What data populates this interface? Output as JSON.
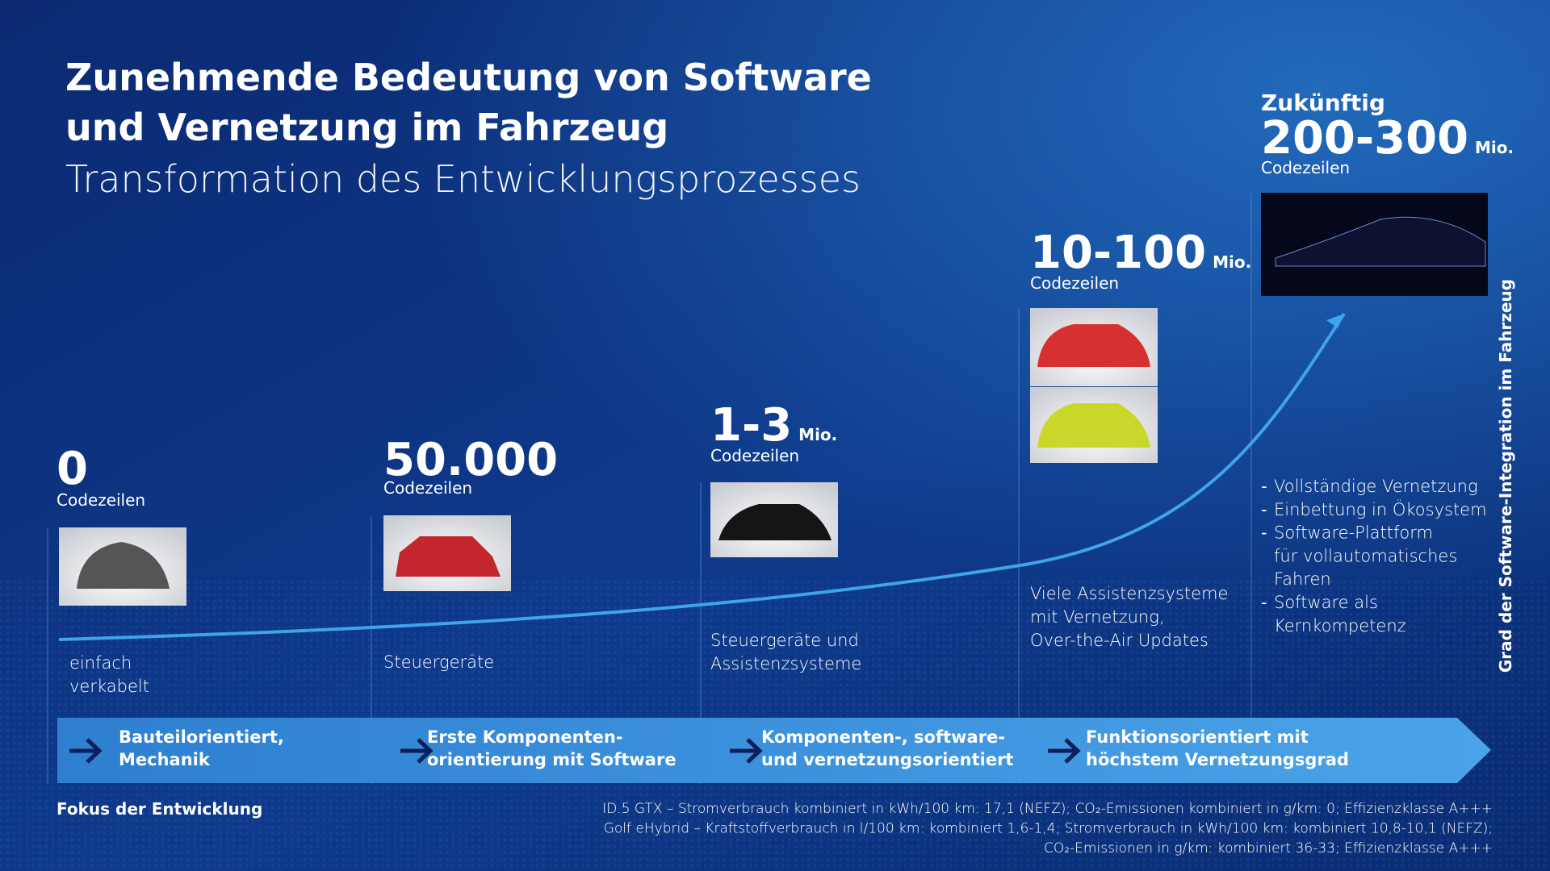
{
  "header": {
    "title": [
      "Zunehmende Bedeutung von Software",
      "und Vernetzung im Fahrzeug"
    ],
    "subtitle": "Transformation des Entwicklungsprozesses"
  },
  "stages": [
    {
      "value": "0",
      "caption": "Codezeilen",
      "description": [
        "einfach",
        "verkabelt"
      ]
    },
    {
      "value": "50.000",
      "caption": "Codezeilen",
      "description": [
        "Steuergeräte"
      ]
    },
    {
      "value": "1-3",
      "unit": "Mio.",
      "caption": "Codezeilen",
      "description": [
        "Steuergeräte und",
        "Assistenzsysteme"
      ]
    },
    {
      "value": "10-100",
      "unit": "Mio.",
      "caption": "Codezeilen",
      "description": [
        "Viele Assistenzsysteme",
        "mit Vernetzung,",
        "Over-the-Air Updates"
      ]
    },
    {
      "overline": "Zukünftig",
      "value": "200-300",
      "unit": "Mio.",
      "caption": "Codezeilen",
      "bullets": [
        [
          "Vollständige Vernetzung"
        ],
        [
          "Einbettung in Ökosystem"
        ],
        [
          "Software-Plattform",
          "für vollautomatisches",
          "Fahren"
        ],
        [
          "Software als",
          "Kernkompetenz"
        ]
      ]
    }
  ],
  "focus": {
    "label": "Fokus der Entwicklung",
    "items": [
      [
        "Bauteilorientiert,",
        "Mechanik"
      ],
      [
        "Erste Komponenten-",
        "orientierung mit Software"
      ],
      [
        "Komponenten-, software-",
        "und vernetzungsorientiert"
      ],
      [
        "Funktionsorientiert mit",
        "höchstem Vernetzungsgrad"
      ]
    ]
  },
  "axis_label": "Grad der Software-Integration im Fahrzeug",
  "footnote": [
    "ID.5 GTX – Stromverbrauch kombiniert in kWh/100 km: 17,1 (NEFZ); CO₂-Emissionen kombiniert in g/km: 0; Effizienzklasse A+++",
    "Golf eHybrid – Kraftstoffverbrauch in l/100 km: kombiniert 1,6-1,4; Stromverbrauch in kWh/100 km: kombiniert 10,8-10,1 (NEFZ);",
    "CO₂-Emissionen in g/km: kombiniert 36-33; Effizienzklasse A+++"
  ]
}
